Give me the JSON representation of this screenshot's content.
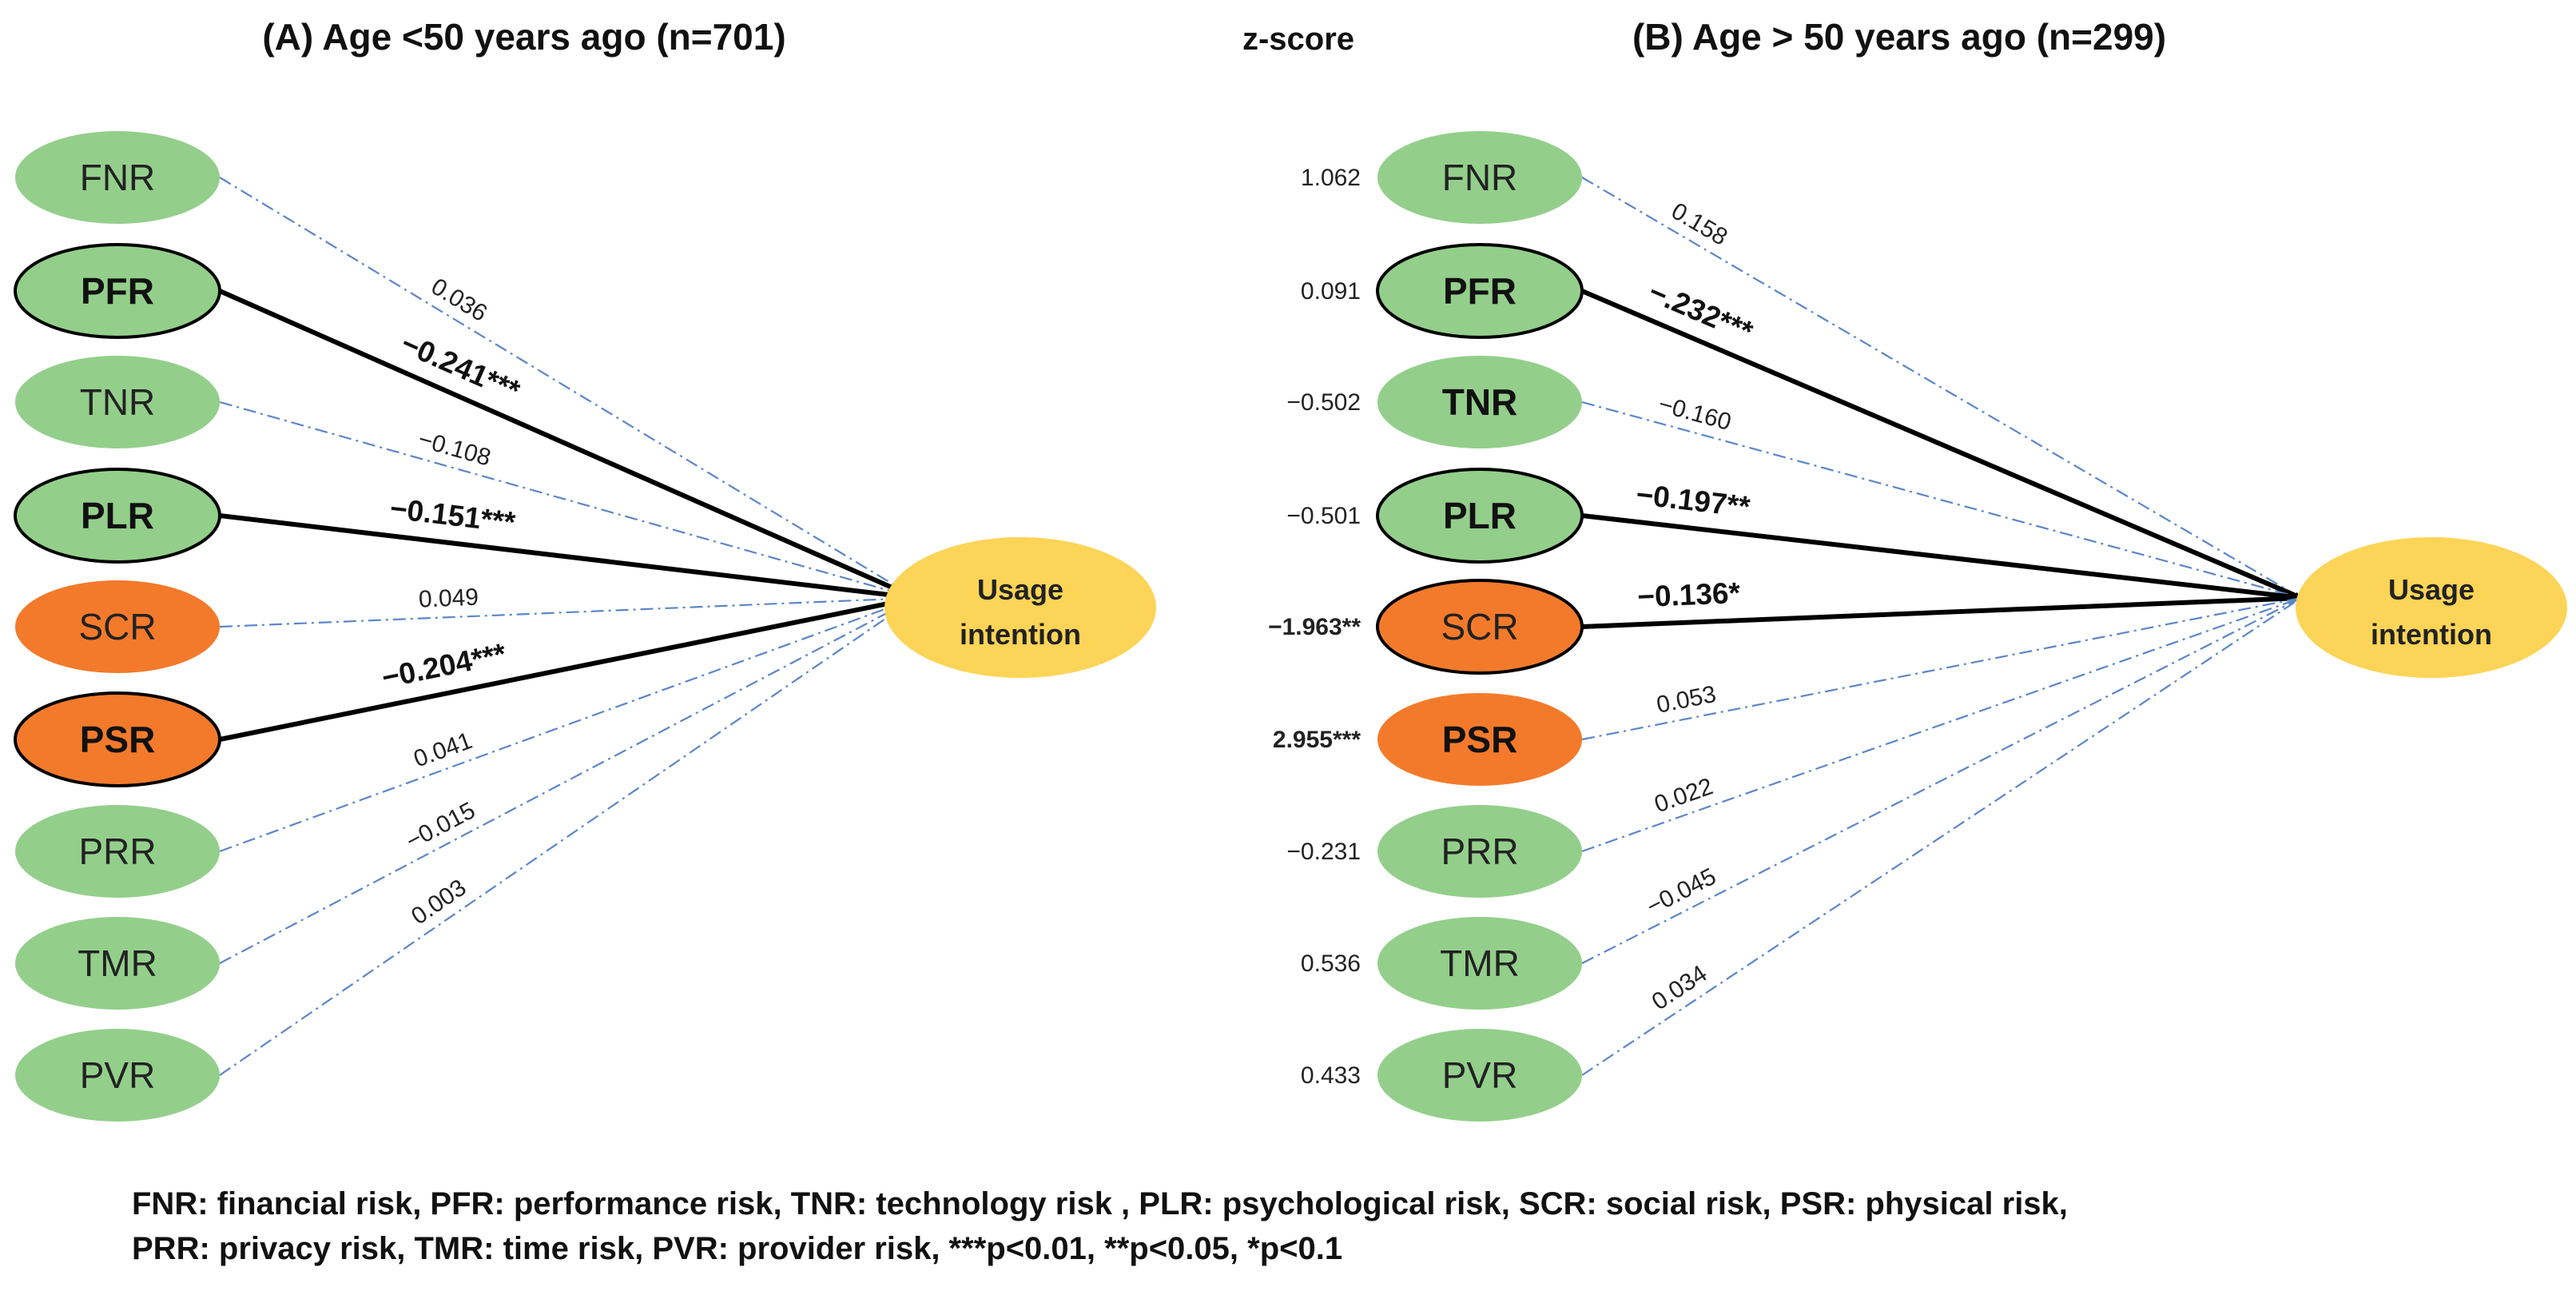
{
  "colors": {
    "risk_green": "#93cf8b",
    "risk_orange": "#f47a2b",
    "target_yellow": "#fcd457",
    "dashed_line": "#5b86c9",
    "solid_line": "#000000"
  },
  "z_score_header": "z-score",
  "target": {
    "line1": "Usage",
    "line2": "intention"
  },
  "panels": [
    {
      "title": "(A) Age <50 years ago (n=701)",
      "nodes": [
        {
          "label": "FNR",
          "color": "green",
          "bold": false,
          "coef": "0.036",
          "significant": false,
          "z": null
        },
        {
          "label": "PFR",
          "color": "green",
          "bold": true,
          "coef": "−0.241***",
          "significant": true,
          "z": null
        },
        {
          "label": "TNR",
          "color": "green",
          "bold": false,
          "coef": "−0.108",
          "significant": false,
          "z": null
        },
        {
          "label": "PLR",
          "color": "green",
          "bold": true,
          "coef": "−0.151***",
          "significant": true,
          "z": null
        },
        {
          "label": "SCR",
          "color": "orange",
          "bold": false,
          "coef": "0.049",
          "significant": false,
          "z": null
        },
        {
          "label": "PSR",
          "color": "orange",
          "bold": true,
          "coef": "−0.204***",
          "significant": true,
          "z": null
        },
        {
          "label": "PRR",
          "color": "green",
          "bold": false,
          "coef": "0.041",
          "significant": false,
          "z": null
        },
        {
          "label": "TMR",
          "color": "green",
          "bold": false,
          "coef": "−0.015",
          "significant": false,
          "z": null
        },
        {
          "label": "PVR",
          "color": "green",
          "bold": false,
          "coef": "0.003",
          "significant": false,
          "z": null
        }
      ]
    },
    {
      "title": "(B) Age > 50 years ago (n=299)",
      "nodes": [
        {
          "label": "FNR",
          "color": "green",
          "bold": false,
          "coef": "0.158",
          "significant": false,
          "z": "1.062",
          "z_bold": false
        },
        {
          "label": "PFR",
          "color": "green",
          "bold": true,
          "coef": "−.232***",
          "significant": true,
          "z": "0.091",
          "z_bold": false
        },
        {
          "label": "TNR",
          "color": "green",
          "bold": true,
          "coef": "−0.160",
          "significant": false,
          "z": "−0.502",
          "z_bold": false
        },
        {
          "label": "PLR",
          "color": "green",
          "bold": true,
          "coef": "−0.197**",
          "significant": true,
          "z": "−0.501",
          "z_bold": false
        },
        {
          "label": "SCR",
          "color": "orange",
          "bold": false,
          "coef": "−0.136*",
          "significant": true,
          "z": "−1.963**",
          "z_bold": true
        },
        {
          "label": "PSR",
          "color": "orange",
          "bold": true,
          "coef": "0.053",
          "significant": false,
          "z": "2.955***",
          "z_bold": true
        },
        {
          "label": "PRR",
          "color": "green",
          "bold": false,
          "coef": "0.022",
          "significant": false,
          "z": "−0.231",
          "z_bold": false
        },
        {
          "label": "TMR",
          "color": "green",
          "bold": false,
          "coef": "−0.045",
          "significant": false,
          "z": "0.536",
          "z_bold": false
        },
        {
          "label": "PVR",
          "color": "green",
          "bold": false,
          "coef": "0.034",
          "significant": false,
          "z": "0.433",
          "z_bold": false
        }
      ]
    }
  ],
  "legend": {
    "line1": "FNR: financial risk, PFR: performance risk, TNR: technology risk , PLR: psychological risk, SCR: social risk, PSR: physical risk,",
    "line2": "PRR: privacy risk, TMR: time risk,  PVR: provider risk, ***p<0.01, **p<0.05, *p<0.1"
  }
}
